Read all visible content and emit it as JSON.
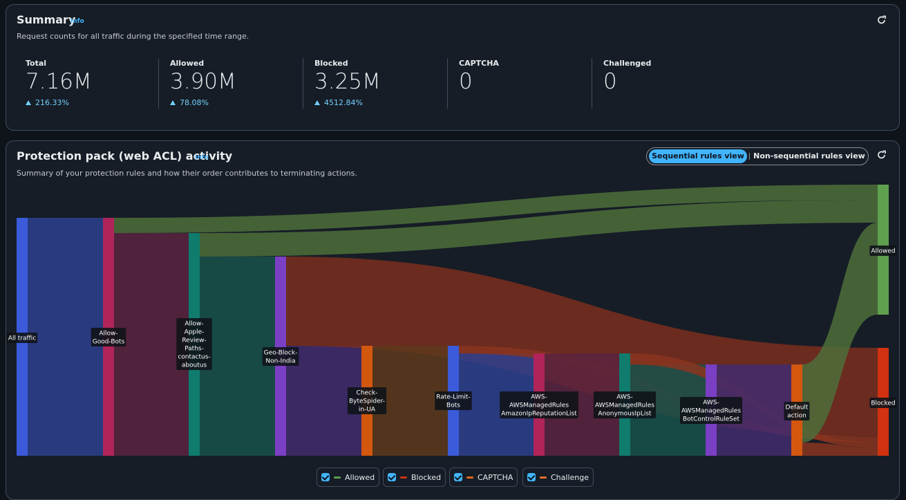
{
  "summary": {
    "title": "Summary",
    "info": "Info",
    "subtitle": "Request counts for all traffic during the specified time range.",
    "metrics": [
      {
        "label": "Total",
        "value": "7.16M",
        "change": "216.33%"
      },
      {
        "label": "Allowed",
        "value": "3.90M",
        "change": "78.08%"
      },
      {
        "label": "Blocked",
        "value": "3.25M",
        "change": "4512.84%"
      },
      {
        "label": "CAPTCHA",
        "value": "0"
      },
      {
        "label": "Challenged",
        "value": "0"
      }
    ]
  },
  "activity": {
    "title": "Protection pack (web ACL) activity",
    "info": "Info",
    "subtitle": "Summary of your protection rules and how their order contributes to terminating actions.",
    "views": [
      "Sequential rules view",
      "Non-sequential rules view"
    ],
    "selected_view": 0,
    "nodes": [
      {
        "lines": [
          "All traffic"
        ],
        "color": "#3b5bdb"
      },
      {
        "lines": [
          "Allow-",
          "Good-Bots"
        ],
        "color": "#b0245a"
      },
      {
        "lines": [
          "Allow-",
          "Apple-",
          "Review-",
          "Paths-",
          "contactus-",
          "aboutus"
        ],
        "color": "#0f7c6e"
      },
      {
        "lines": [
          "Geo-Block-",
          "Non-India"
        ],
        "color": "#7b3fc4"
      },
      {
        "lines": [
          "Check-",
          "ByteSpider-",
          "in-UA"
        ],
        "color": "#d4570f"
      },
      {
        "lines": [
          "Rate-Limit-",
          "Bots"
        ],
        "color": "#3b5bdb"
      },
      {
        "lines": [
          "AWS-",
          "AWSManagedRules",
          "AmazonIpReputationList"
        ],
        "color": "#b0245a"
      },
      {
        "lines": [
          "AWS-",
          "AWSManagedRules",
          "AnonymousIpList"
        ],
        "color": "#0f7c6e"
      },
      {
        "lines": [
          "AWS-",
          "AWSManagedRules",
          "BotControlRuleSet"
        ],
        "color": "#7b3fc4"
      },
      {
        "lines": [
          "Default",
          "action"
        ],
        "color": "#d4570f"
      },
      {
        "lines": [
          "Allowed"
        ],
        "color": "#5fa04e"
      },
      {
        "lines": [
          "Blocked"
        ],
        "color": "#d13212"
      }
    ],
    "legend": [
      {
        "name": "Allowed",
        "color": "#5fa04e"
      },
      {
        "name": "Blocked",
        "color": "#d13212"
      },
      {
        "name": "CAPTCHA",
        "color": "#e0661c"
      },
      {
        "name": "Challenge",
        "color": "#e8702a"
      }
    ]
  }
}
